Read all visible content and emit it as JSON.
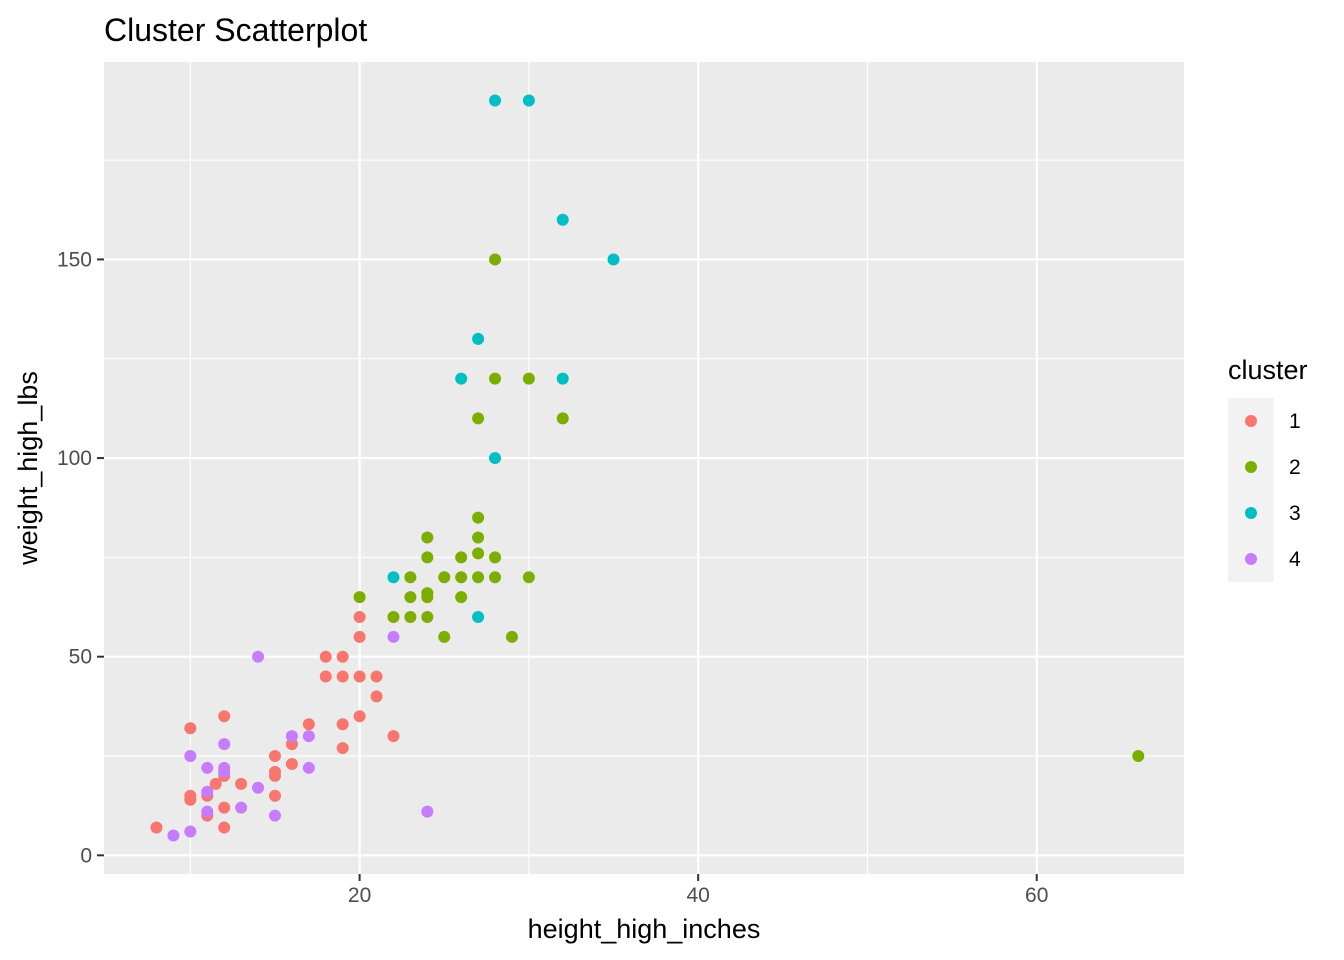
{
  "chart_data": {
    "type": "scatter",
    "title": "Cluster Scatterplot",
    "xlabel": "height_high_inches",
    "ylabel": "weight_high_lbs",
    "xlim": [
      4.9,
      68.7
    ],
    "ylim": [
      -4.7,
      199.7
    ],
    "x_ticks": [
      20,
      40,
      60
    ],
    "y_ticks": [
      0,
      50,
      100,
      150
    ],
    "x_minor_ticks": [
      10,
      30,
      50
    ],
    "y_minor_ticks": [
      25,
      75,
      125,
      175
    ],
    "grid": true,
    "legend": {
      "title": "cluster",
      "position": "right"
    },
    "series": [
      {
        "name": "1",
        "color": "#F8766D",
        "points": [
          [
            8,
            7
          ],
          [
            10,
            32
          ],
          [
            10,
            15
          ],
          [
            10,
            14
          ],
          [
            11,
            10
          ],
          [
            11,
            15
          ],
          [
            11.5,
            18
          ],
          [
            12,
            35
          ],
          [
            12,
            20
          ],
          [
            12,
            12
          ],
          [
            12,
            7
          ],
          [
            13,
            18
          ],
          [
            15,
            25
          ],
          [
            15,
            21
          ],
          [
            15,
            20
          ],
          [
            15,
            15
          ],
          [
            16,
            28
          ],
          [
            16,
            23
          ],
          [
            17,
            33
          ],
          [
            18,
            50
          ],
          [
            18,
            45
          ],
          [
            19,
            50
          ],
          [
            19,
            45
          ],
          [
            19,
            33
          ],
          [
            19,
            27
          ],
          [
            20,
            60
          ],
          [
            20,
            55
          ],
          [
            20,
            45
          ],
          [
            20,
            35
          ],
          [
            21,
            45
          ],
          [
            21,
            40
          ],
          [
            22,
            30
          ]
        ]
      },
      {
        "name": "2",
        "color": "#7CAE00",
        "points": [
          [
            20,
            65
          ],
          [
            22,
            60
          ],
          [
            23,
            70
          ],
          [
            23,
            65
          ],
          [
            23,
            60
          ],
          [
            24,
            80
          ],
          [
            24,
            75
          ],
          [
            24,
            66
          ],
          [
            24,
            65
          ],
          [
            24,
            60
          ],
          [
            25,
            70
          ],
          [
            25,
            55
          ],
          [
            26,
            75
          ],
          [
            26,
            70
          ],
          [
            26,
            65
          ],
          [
            27,
            85
          ],
          [
            27,
            80
          ],
          [
            27,
            76
          ],
          [
            27,
            70
          ],
          [
            27,
            110
          ],
          [
            28,
            150
          ],
          [
            28,
            120
          ],
          [
            28,
            75
          ],
          [
            28,
            70
          ],
          [
            29,
            55
          ],
          [
            30,
            120
          ],
          [
            30,
            70
          ],
          [
            32,
            110
          ],
          [
            66,
            25
          ]
        ]
      },
      {
        "name": "3",
        "color": "#00BFC4",
        "points": [
          [
            22,
            70
          ],
          [
            26,
            120
          ],
          [
            27,
            130
          ],
          [
            27,
            60
          ],
          [
            28,
            190
          ],
          [
            28,
            100
          ],
          [
            30,
            190
          ],
          [
            32,
            160
          ],
          [
            32,
            120
          ],
          [
            35,
            150
          ]
        ]
      },
      {
        "name": "4",
        "color": "#C77CFF",
        "points": [
          [
            9,
            5
          ],
          [
            10,
            25
          ],
          [
            10,
            6
          ],
          [
            11,
            22
          ],
          [
            11,
            16
          ],
          [
            11,
            11
          ],
          [
            12,
            28
          ],
          [
            12,
            22
          ],
          [
            12,
            21
          ],
          [
            13,
            12
          ],
          [
            14,
            50
          ],
          [
            14,
            17
          ],
          [
            15,
            10
          ],
          [
            16,
            30
          ],
          [
            17,
            30
          ],
          [
            17,
            22
          ],
          [
            22,
            55
          ],
          [
            24,
            11
          ]
        ]
      }
    ]
  }
}
